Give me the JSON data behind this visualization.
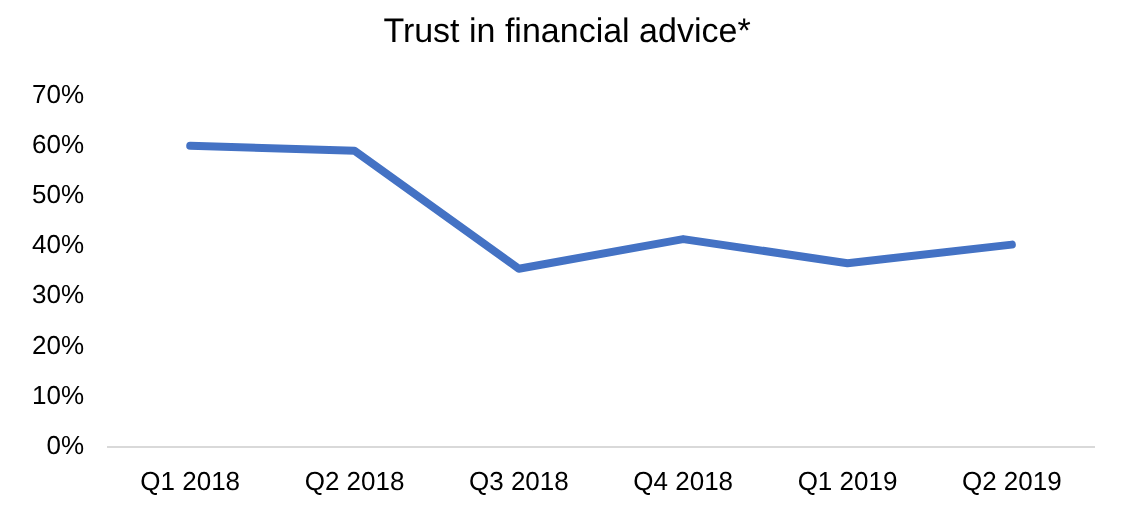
{
  "chart_data": {
    "type": "line",
    "title": "Trust in financial advice*",
    "categories": [
      "Q1 2018",
      "Q2 2018",
      "Q3 2018",
      "Q4 2018",
      "Q1 2019",
      "Q2 2019"
    ],
    "series": [
      {
        "color": "#4472c4",
        "values": [
          60,
          59,
          35.5,
          41.4,
          36.6,
          40.3
        ]
      }
    ],
    "ylim": [
      0,
      70
    ],
    "yticks": [
      {
        "value": 0,
        "label": "0%"
      },
      {
        "value": 10,
        "label": "10%"
      },
      {
        "value": 20,
        "label": "20%"
      },
      {
        "value": 30,
        "label": "30%"
      },
      {
        "value": 40,
        "label": "40%"
      },
      {
        "value": 50,
        "label": "50%"
      },
      {
        "value": 60,
        "label": "60%"
      },
      {
        "value": 70,
        "label": "70%"
      }
    ],
    "grid": false,
    "legend": false,
    "marker": "none",
    "line_style": "solid"
  }
}
